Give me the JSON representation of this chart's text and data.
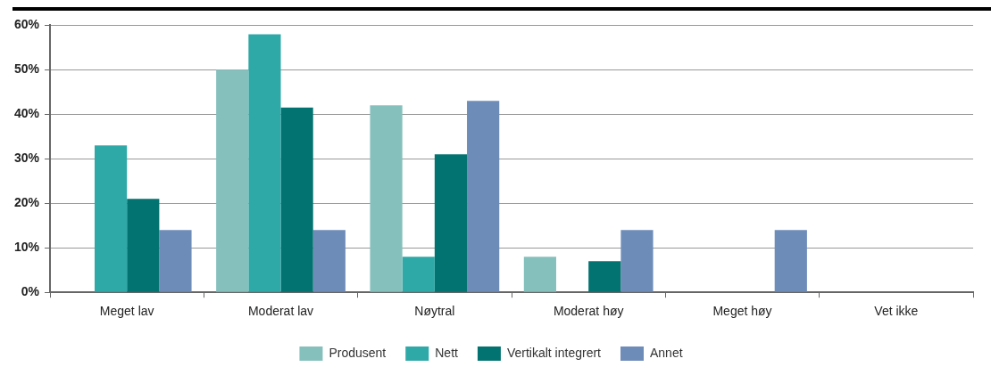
{
  "chart_data": {
    "type": "bar",
    "categories": [
      "Meget lav",
      "Moderat lav",
      "Nøytral",
      "Moderat høy",
      "Meget høy",
      "Vet ikke"
    ],
    "series": [
      {
        "name": "Produsent",
        "color": "#85c0bd",
        "values": [
          0,
          50,
          42,
          8,
          0,
          0
        ]
      },
      {
        "name": "Nett",
        "color": "#2fa8a8",
        "values": [
          33,
          58,
          8,
          0,
          0,
          0
        ]
      },
      {
        "name": "Vertikalt integrert",
        "color": "#027370",
        "values": [
          21,
          41.5,
          31,
          7,
          0,
          0
        ]
      },
      {
        "name": "Annet",
        "color": "#6e8cb8",
        "values": [
          14,
          14,
          43,
          14,
          14,
          0
        ]
      }
    ],
    "ylim": [
      0,
      60
    ],
    "yticks": [
      {
        "value": 0,
        "label": "0%"
      },
      {
        "value": 10,
        "label": "10%"
      },
      {
        "value": 20,
        "label": "20%"
      },
      {
        "value": 30,
        "label": "30%"
      },
      {
        "value": 40,
        "label": "40%"
      },
      {
        "value": 50,
        "label": "50%"
      },
      {
        "value": 60,
        "label": "60%"
      }
    ],
    "grid": "y",
    "legend": "bottom"
  }
}
